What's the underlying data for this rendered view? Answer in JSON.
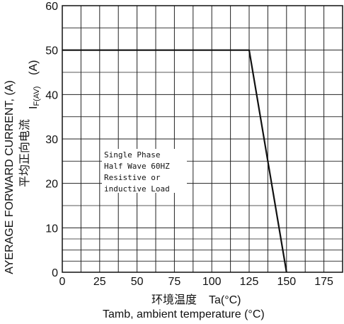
{
  "chart_data": {
    "type": "line",
    "title": "",
    "xlabel_cn": "环境温度",
    "xlabel_symbol": "Ta(°C)",
    "xlabel": "Tamb, ambient temperature (°C)",
    "ylabel": "AYERAGE FORWARD CURRENT, (A)",
    "ylabel_cn": "平均正向电流",
    "ylabel_symbol_main": "I",
    "ylabel_symbol_sub": "F(AV)",
    "ylabel_symbol_unit": "(A)",
    "xlim": [
      0,
      187.5
    ],
    "ylim": [
      0,
      60
    ],
    "xticks": [
      0,
      25,
      50,
      75,
      100,
      125,
      150,
      175
    ],
    "xtick_labels": [
      "0",
      "25",
      "50",
      "75",
      "100",
      "125",
      "150",
      "175"
    ],
    "yticks": [
      0,
      10,
      20,
      30,
      40,
      50,
      60
    ],
    "ytick_labels": [
      "0",
      "10",
      "20",
      "30",
      "40",
      "50",
      "60"
    ],
    "grid": true,
    "minor_hlines": [
      2.5,
      5,
      7.5,
      15,
      25,
      35,
      45,
      55
    ],
    "series": [
      {
        "x": [
          0,
          125,
          150
        ],
        "y": [
          50,
          50,
          0
        ]
      }
    ],
    "annotation": [
      "Single Phase",
      "Half Wave 60HZ",
      "Resistive or",
      "inductive Load"
    ]
  },
  "colors": {
    "line": "#111111",
    "grid": "#222222"
  }
}
